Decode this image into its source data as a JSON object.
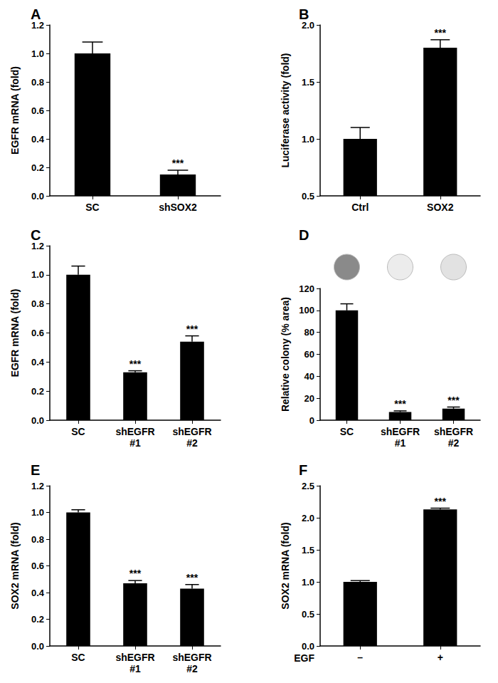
{
  "chart_data": [
    {
      "type": "bar",
      "title": "A",
      "y_label": "EGFR mRNA (fold)",
      "categories": [
        "SC",
        "shSOX2"
      ],
      "values": [
        1.0,
        0.15
      ],
      "errors": [
        0.08,
        0.03
      ],
      "annotations": [
        null,
        "***"
      ],
      "color": "#000000",
      "ylim": [
        0,
        1.2
      ],
      "yticks": [
        {
          "value": 0,
          "label": "0.0"
        },
        0.2,
        0.4,
        0.6,
        0.8,
        {
          "value": 1,
          "label": "1.0"
        },
        1.2
      ],
      "grid": false
    },
    {
      "type": "bar",
      "title": "B",
      "y_label": "Luciferase activity (fold)",
      "categories": [
        "Ctrl",
        "SOX2"
      ],
      "values": [
        1.0,
        1.8
      ],
      "errors": [
        0.1,
        0.07
      ],
      "annotations": [
        null,
        "***"
      ],
      "color": "#000000",
      "ylim": [
        0.5,
        2.0
      ],
      "yticks": [
        0.5,
        {
          "value": 1,
          "label": "1.0"
        },
        1.5,
        {
          "value": 2,
          "label": "2.0"
        }
      ],
      "grid": false
    },
    {
      "type": "bar",
      "title": "C",
      "y_label": "EGFR mRNA (fold)",
      "categories": [
        "SC",
        "shEGFR\n#1",
        "shEGFR\n#2"
      ],
      "values": [
        1.0,
        0.33,
        0.54
      ],
      "errors": [
        0.06,
        0.01,
        0.04
      ],
      "annotations": [
        null,
        "***",
        "***"
      ],
      "color": "#000000",
      "ylim": [
        0,
        1.2
      ],
      "yticks": [
        {
          "value": 0,
          "label": "0.0"
        },
        0.2,
        0.4,
        0.6,
        0.8,
        {
          "value": 1,
          "label": "1.0"
        },
        1.2
      ],
      "grid": false
    },
    {
      "type": "bar",
      "title": "D",
      "y_label": "Relative colony (% area)",
      "categories": [
        "SC",
        "shEGFR\n#1",
        "shEGFR\n#2"
      ],
      "values": [
        100,
        7.5,
        10.5
      ],
      "errors": [
        6,
        1,
        1.5
      ],
      "annotations": [
        null,
        "***",
        "***"
      ],
      "color": "#000000",
      "ylim": [
        0,
        120
      ],
      "yticks": [
        0,
        20,
        40,
        60,
        80,
        100,
        120
      ],
      "grid": false
    },
    {
      "type": "bar",
      "title": "E",
      "y_label": "SOX2 mRNA (fold)",
      "categories": [
        "SC",
        "shEGFR\n#1",
        "shEGFR\n#2"
      ],
      "values": [
        1.0,
        0.47,
        0.43
      ],
      "errors": [
        0.02,
        0.02,
        0.03
      ],
      "annotations": [
        null,
        "***",
        "***"
      ],
      "color": "#000000",
      "ylim": [
        0,
        1.2
      ],
      "yticks": [
        {
          "value": 0,
          "label": "0.0"
        },
        0.2,
        0.4,
        0.6,
        0.8,
        {
          "value": 1,
          "label": "1.0"
        },
        1.2
      ],
      "grid": false
    },
    {
      "type": "bar",
      "title": "F",
      "y_label": "SOX2 mRNA (fold)",
      "x_label": "EGF",
      "categories": [
        "–",
        "+"
      ],
      "values": [
        1.0,
        2.13
      ],
      "errors": [
        0.02,
        0.02
      ],
      "annotations": [
        null,
        "***"
      ],
      "color": "#000000",
      "ylim": [
        0,
        2.5
      ],
      "yticks": [
        {
          "value": 0,
          "label": "0.0"
        },
        0.5,
        {
          "value": 1,
          "label": "1.0"
        },
        1.5,
        {
          "value": 2,
          "label": "2.0"
        },
        2.5
      ],
      "grid": false
    }
  ]
}
